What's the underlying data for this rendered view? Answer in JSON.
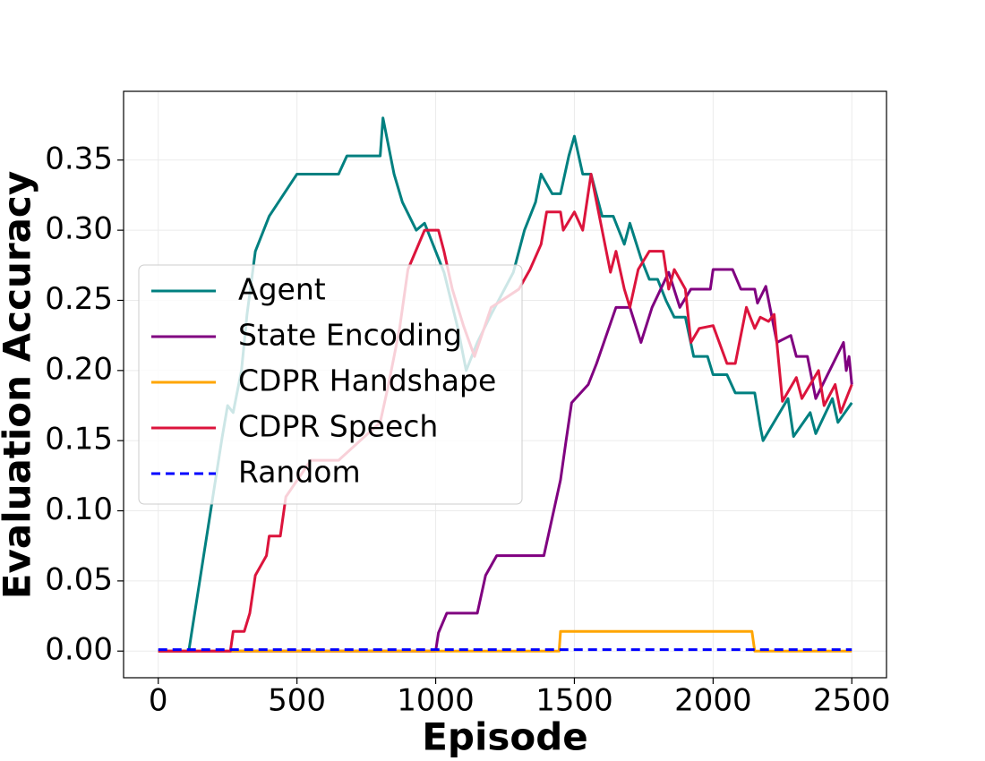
{
  "chart_data": {
    "type": "line",
    "xlabel": "Episode",
    "ylabel": "Evaluation Accuracy",
    "xlim": [
      -125,
      2625
    ],
    "ylim": [
      -0.019,
      0.399
    ],
    "xticks": [
      0,
      500,
      1000,
      1500,
      2000,
      2500
    ],
    "yticks": [
      {
        "value": 0,
        "label": "0.00"
      },
      0.05,
      {
        "value": 0.1,
        "label": "0.10"
      },
      0.15,
      {
        "value": 0.2,
        "label": "0.20"
      },
      0.25,
      {
        "value": 0.3,
        "label": "0.30"
      },
      0.35
    ],
    "grid": true,
    "legend": "center left",
    "series": [
      {
        "name": "Agent",
        "color": "#008080",
        "dash": "solid",
        "x": [
          0,
          110,
          230,
          250,
          270,
          300,
          320,
          350,
          400,
          450,
          500,
          650,
          680,
          800,
          810,
          850,
          880,
          930,
          960,
          990,
          1030,
          1080,
          1110,
          1150,
          1200,
          1280,
          1320,
          1360,
          1380,
          1420,
          1450,
          1480,
          1500,
          1530,
          1560,
          1600,
          1640,
          1680,
          1700,
          1740,
          1770,
          1800,
          1830,
          1860,
          1900,
          1930,
          1980,
          2000,
          2050,
          2080,
          2150,
          2170,
          2180,
          2270,
          2290,
          2350,
          2370,
          2430,
          2450,
          2500
        ],
        "values": [
          0,
          0,
          0.152,
          0.175,
          0.17,
          0.2,
          0.24,
          0.285,
          0.31,
          0.325,
          0.34,
          0.34,
          0.353,
          0.353,
          0.38,
          0.34,
          0.32,
          0.3,
          0.305,
          0.29,
          0.27,
          0.23,
          0.2,
          0.22,
          0.24,
          0.27,
          0.3,
          0.32,
          0.34,
          0.326,
          0.326,
          0.353,
          0.367,
          0.34,
          0.34,
          0.31,
          0.31,
          0.29,
          0.305,
          0.28,
          0.265,
          0.265,
          0.25,
          0.238,
          0.238,
          0.21,
          0.21,
          0.197,
          0.197,
          0.184,
          0.184,
          0.16,
          0.15,
          0.18,
          0.153,
          0.17,
          0.155,
          0.18,
          0.163,
          0.177
        ]
      },
      {
        "name": "State Encoding",
        "color": "#800080",
        "dash": "solid",
        "x": [
          0,
          1000,
          1010,
          1040,
          1150,
          1180,
          1220,
          1390,
          1420,
          1450,
          1470,
          1490,
          1550,
          1580,
          1650,
          1700,
          1740,
          1780,
          1840,
          1880,
          1920,
          1990,
          2000,
          2070,
          2100,
          2150,
          2160,
          2190,
          2230,
          2280,
          2300,
          2340,
          2370,
          2420,
          2470,
          2480,
          2490,
          2500
        ],
        "values": [
          0,
          0,
          0.013,
          0.027,
          0.027,
          0.054,
          0.068,
          0.068,
          0.095,
          0.122,
          0.15,
          0.177,
          0.19,
          0.205,
          0.245,
          0.245,
          0.22,
          0.245,
          0.27,
          0.245,
          0.258,
          0.258,
          0.272,
          0.272,
          0.258,
          0.258,
          0.248,
          0.26,
          0.22,
          0.225,
          0.21,
          0.21,
          0.18,
          0.2,
          0.22,
          0.2,
          0.21,
          0.19
        ]
      },
      {
        "name": "CDPR Handshape",
        "color": "#ffa500",
        "dash": "solid",
        "x": [
          0,
          1445,
          1450,
          2140,
          2150,
          2500
        ],
        "values": [
          0,
          0,
          0.014,
          0.014,
          0,
          0
        ]
      },
      {
        "name": "CDPR Speech",
        "color": "#dc143c",
        "dash": "solid",
        "x": [
          0,
          260,
          270,
          310,
          330,
          350,
          390,
          400,
          440,
          460,
          550,
          650,
          800,
          830,
          870,
          900,
          960,
          1010,
          1030,
          1060,
          1100,
          1140,
          1200,
          1300,
          1340,
          1380,
          1400,
          1450,
          1460,
          1500,
          1530,
          1560,
          1600,
          1630,
          1650,
          1680,
          1700,
          1730,
          1770,
          1820,
          1840,
          1860,
          1900,
          1920,
          1950,
          2000,
          2050,
          2080,
          2120,
          2150,
          2170,
          2200,
          2220,
          2250,
          2300,
          2320,
          2380,
          2400,
          2440,
          2460,
          2500
        ],
        "values": [
          0,
          0,
          0.014,
          0.014,
          0.027,
          0.054,
          0.068,
          0.082,
          0.082,
          0.11,
          0.136,
          0.136,
          0.163,
          0.19,
          0.23,
          0.272,
          0.3,
          0.3,
          0.285,
          0.258,
          0.232,
          0.21,
          0.245,
          0.258,
          0.272,
          0.29,
          0.313,
          0.313,
          0.3,
          0.313,
          0.3,
          0.34,
          0.3,
          0.27,
          0.285,
          0.258,
          0.245,
          0.272,
          0.285,
          0.285,
          0.258,
          0.272,
          0.258,
          0.22,
          0.23,
          0.232,
          0.205,
          0.205,
          0.245,
          0.23,
          0.238,
          0.235,
          0.24,
          0.178,
          0.195,
          0.18,
          0.2,
          0.175,
          0.19,
          0.17,
          0.19
        ]
      },
      {
        "name": "Random",
        "color": "#0000ff",
        "dash": "dashed",
        "x": [
          0,
          2500
        ],
        "values": [
          0.001,
          0.001
        ]
      }
    ]
  }
}
